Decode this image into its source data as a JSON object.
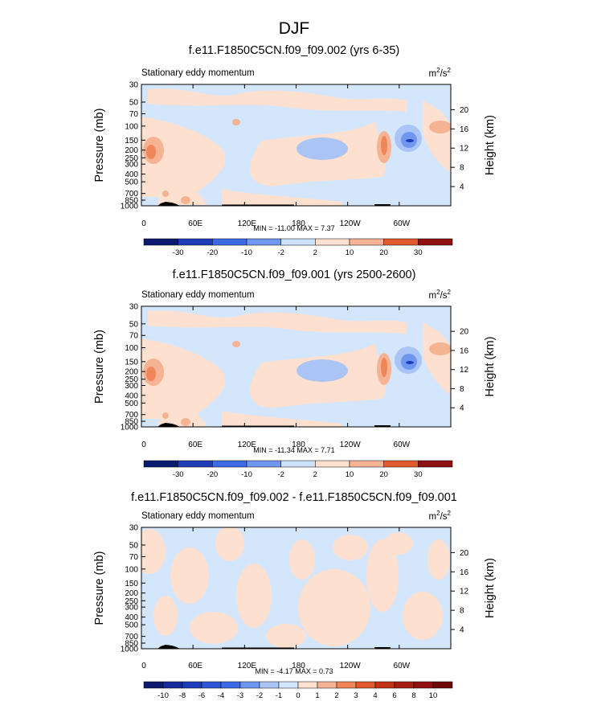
{
  "page": {
    "title": "DJF"
  },
  "chart_data": {
    "type": "heatmap",
    "x_ticks": [
      "0",
      "60E",
      "120E",
      "180",
      "120W",
      "60W"
    ],
    "x_tick_lon": [
      0,
      60,
      120,
      180,
      240,
      300
    ],
    "x_range_lon": [
      0,
      360
    ],
    "y_ticks": [
      "30",
      "50",
      "70",
      "100",
      "150",
      "200",
      "250",
      "300",
      "400",
      "500",
      "700",
      "850",
      "1000"
    ],
    "y_range_mb": [
      30,
      1000
    ],
    "right_ticks": [
      "20",
      "16",
      "12",
      "8",
      "4"
    ],
    "right_tick_km": [
      20,
      16,
      12,
      8,
      4
    ],
    "ylabel": "Pressure (mb)",
    "ylabel_right": "Height (km)",
    "panels": [
      {
        "title": "f.e11.F1850C5CN.f09_f09.002 (yrs 6-35)",
        "left_label": "Stationary eddy momentum",
        "units": "m2/s2",
        "units_base": "m",
        "units_sup1": "2",
        "units_mid": "/s",
        "units_sup2": "2",
        "stats": "MIN = -11.00   MAX =   7.37",
        "min": -11.0,
        "max": 7.37,
        "levels": [
          "-30",
          "-20",
          "-10",
          "-2",
          "2",
          "10",
          "20",
          "30"
        ]
      },
      {
        "title": "f.e11.F1850C5CN.f09_f09.001 (yrs 2500-2600)",
        "left_label": "Stationary eddy momentum",
        "units": "m2/s2",
        "units_base": "m",
        "units_sup1": "2",
        "units_mid": "/s",
        "units_sup2": "2",
        "stats": "MIN = -11.34   MAX =   7.71",
        "min": -11.34,
        "max": 7.71,
        "levels": [
          "-30",
          "-20",
          "-10",
          "-2",
          "2",
          "10",
          "20",
          "30"
        ]
      },
      {
        "title": "f.e11.F1850C5CN.f09_f09.002 - f.e11.F1850C5CN.f09_f09.001",
        "left_label": "Stationary eddy momentum",
        "units": "m2/s2",
        "units_base": "m",
        "units_sup1": "2",
        "units_mid": "/s",
        "units_sup2": "2",
        "stats": "MIN =  -4.17   MAX =   0.73",
        "min": -4.17,
        "max": 0.73,
        "levels": [
          "-10",
          "-8",
          "-6",
          "-4",
          "-3",
          "-2",
          "-1",
          "0",
          "1",
          "2",
          "3",
          "4",
          "6",
          "8",
          "10"
        ]
      }
    ],
    "colorbar_colors_9": [
      "#0a1a6e",
      "#1f3cb8",
      "#3c6ae6",
      "#6f97f0",
      "#a9c4f5",
      "#d4e6fc",
      "#fde0cf",
      "#f6b394",
      "#f08658",
      "#e15a2e",
      "#c43318",
      "#8f1010"
    ],
    "palette": {
      "neg_light": "#d4e6fc",
      "neg_mid": "#a9c4f5",
      "neg_strong": "#6f97f0",
      "neg_darker": "#3c6ae6",
      "neg_core": "#1f3cb8",
      "pos_light": "#fde0cf",
      "pos_mid": "#f6b394",
      "pos_strong": "#f08658",
      "frame": "#000000"
    }
  }
}
